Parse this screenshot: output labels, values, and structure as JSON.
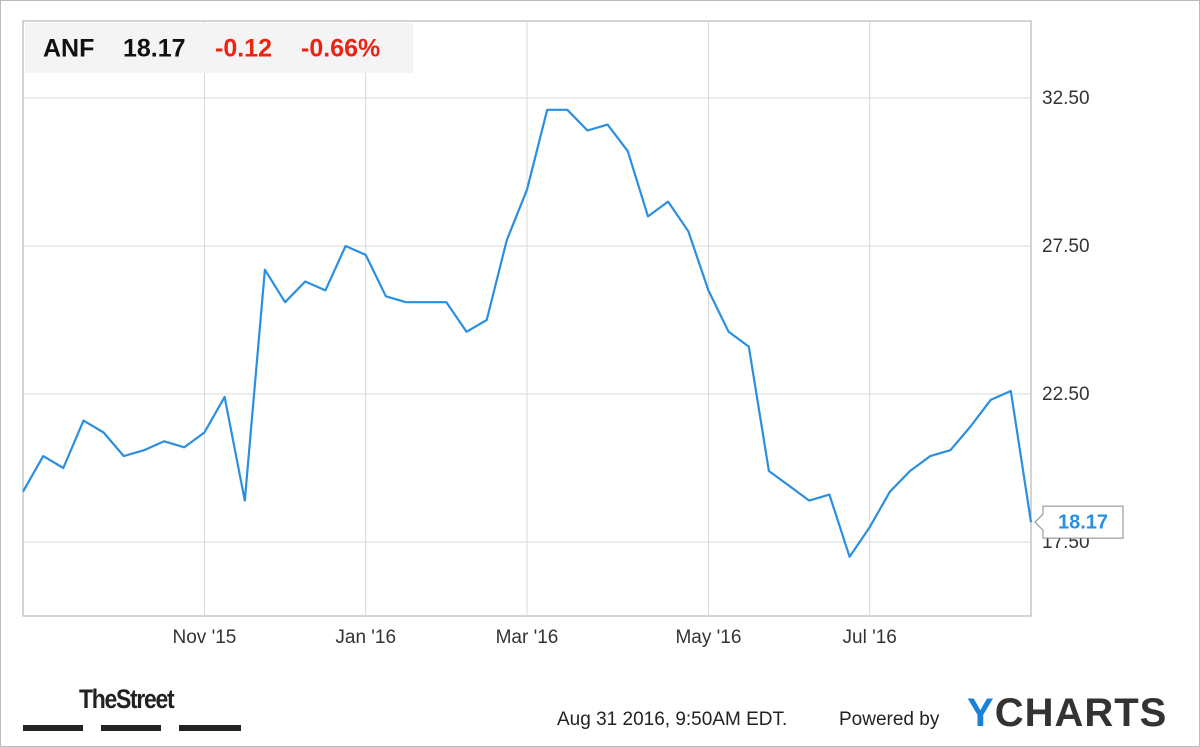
{
  "header": {
    "ticker": "ANF",
    "price": "18.17",
    "change": "-0.12",
    "change_pct": "-0.66%"
  },
  "chart_data": {
    "type": "line",
    "categories": [
      null,
      null,
      null,
      null,
      null,
      null,
      null,
      null,
      null,
      "Nov '15",
      null,
      null,
      null,
      null,
      null,
      null,
      null,
      "Jan '16",
      null,
      null,
      null,
      null,
      null,
      null,
      null,
      "Mar '16",
      null,
      null,
      null,
      null,
      null,
      null,
      null,
      null,
      "May '16",
      null,
      null,
      null,
      null,
      null,
      null,
      null,
      "Jul '16",
      null,
      null,
      null,
      null,
      null,
      null,
      null,
      null
    ],
    "series": [
      {
        "name": "ANF",
        "color": "#2b8fe0",
        "values": [
          19.2,
          20.4,
          20.0,
          21.6,
          21.2,
          20.4,
          20.6,
          20.9,
          20.7,
          21.2,
          22.4,
          18.9,
          26.7,
          25.6,
          26.3,
          26.0,
          27.5,
          27.2,
          25.8,
          25.6,
          25.6,
          25.6,
          24.6,
          25.0,
          27.7,
          29.4,
          32.1,
          32.1,
          31.4,
          31.6,
          30.7,
          28.5,
          29.0,
          28.0,
          26.0,
          24.6,
          24.1,
          19.9,
          19.4,
          18.9,
          19.1,
          17.0,
          18.0,
          19.2,
          19.9,
          20.4,
          20.6,
          21.4,
          22.3,
          22.6,
          18.17
        ]
      }
    ],
    "ylim": [
      15,
      35.1
    ],
    "yticks": [
      {
        "value": 17.5,
        "label": "17.50"
      },
      {
        "value": 22.5,
        "label": "22.50"
      },
      {
        "value": 27.5,
        "label": "27.50"
      },
      {
        "value": 32.5,
        "label": "32.50"
      }
    ],
    "grid": true
  },
  "footer": {
    "brand": "TheStreet",
    "timestamp": "Aug 31 2016, 9:50AM EDT.",
    "powered": "Powered by",
    "provider": "YCHARTS"
  }
}
